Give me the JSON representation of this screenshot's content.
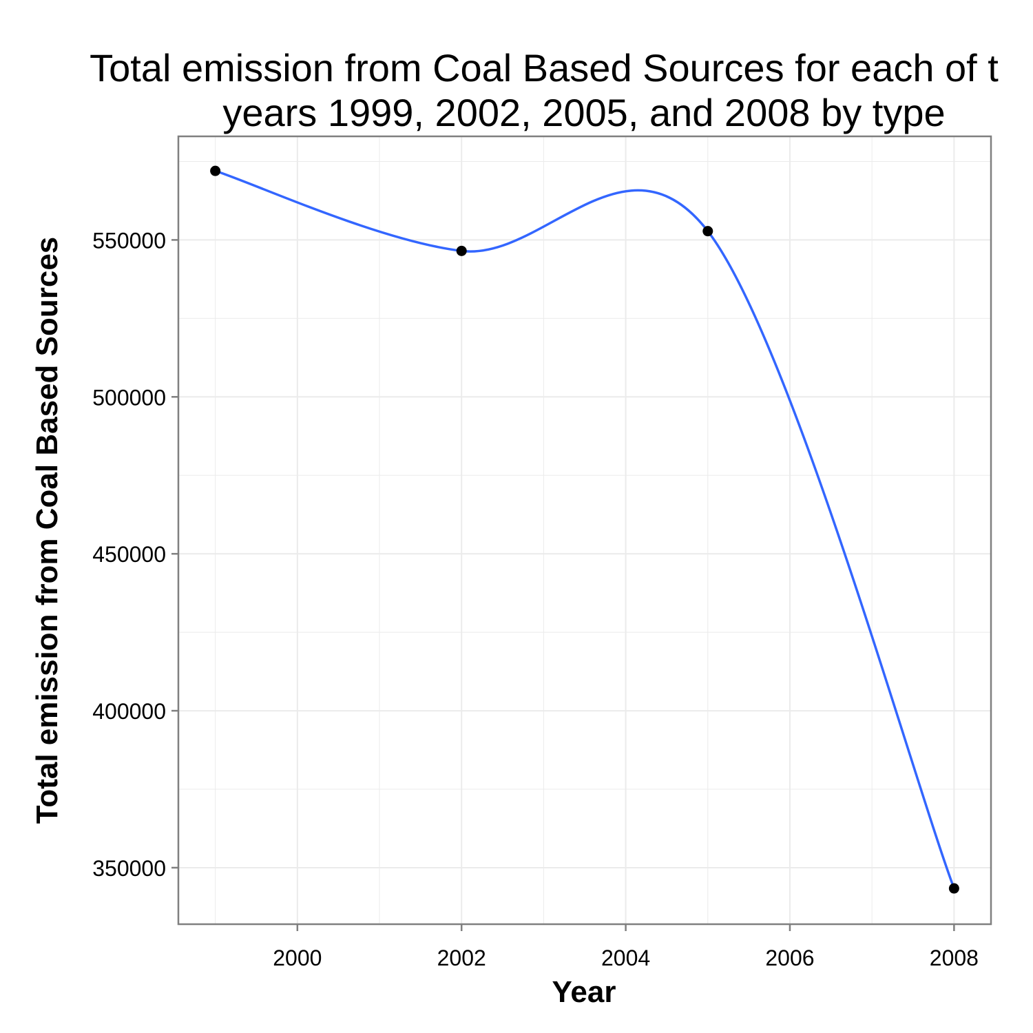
{
  "chart_data": {
    "type": "scatter",
    "title_lines": [
      "Total emission from Coal Based Sources for each of t",
      "years 1999, 2002, 2005, and 2008 by type"
    ],
    "xlabel": "Year",
    "ylabel": "Total emission from Coal Based Sources",
    "x": [
      1999,
      2002,
      2005,
      2008
    ],
    "y": [
      572000,
      546500,
      552800,
      343400
    ],
    "smooth_line": true,
    "xlim": [
      1998.55,
      2008.45
    ],
    "ylim": [
      332000,
      583000
    ],
    "x_ticks": [
      2000,
      2002,
      2004,
      2006,
      2008
    ],
    "x_tick_labels": [
      "2000",
      "2002",
      "2004",
      "2006",
      "2008"
    ],
    "y_ticks": [
      350000,
      400000,
      450000,
      500000,
      550000
    ],
    "y_tick_labels": [
      "350000",
      "400000",
      "450000",
      "500000",
      "550000"
    ],
    "grid": true,
    "colors": {
      "line": "#3366ff",
      "point": "#000000",
      "grid": "#ebebeb",
      "panel_border": "#7f7f7f"
    }
  }
}
